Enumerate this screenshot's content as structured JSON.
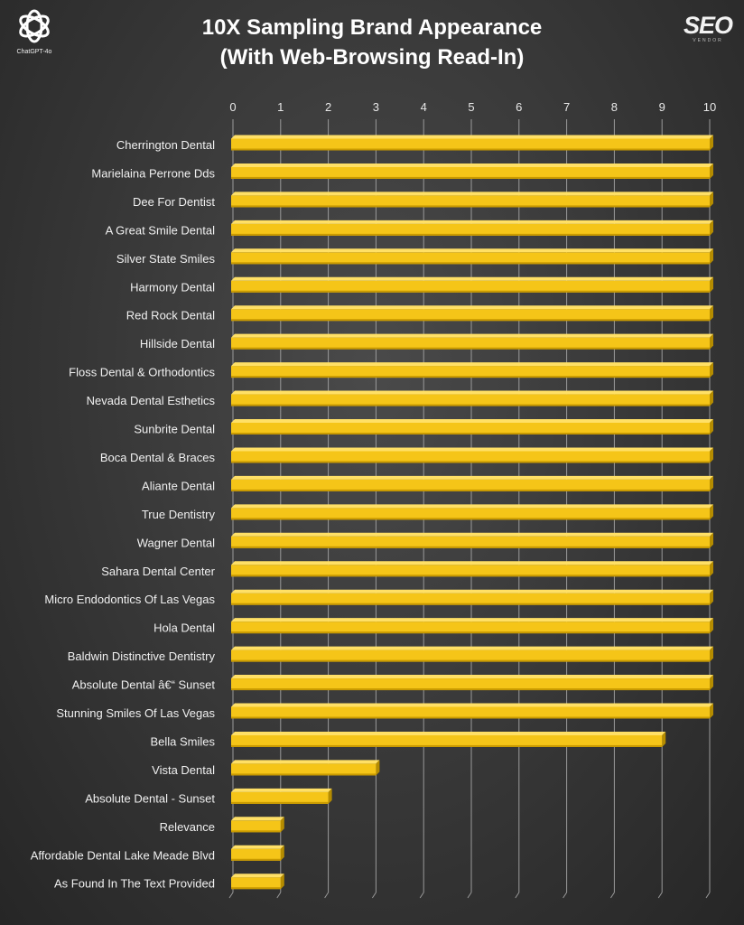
{
  "logos": {
    "left": {
      "icon": "chatgpt-icon",
      "caption": "ChatGPT-4o"
    },
    "right": {
      "text": "SEO",
      "subtext": "VENDOR"
    }
  },
  "chart_data": {
    "type": "bar",
    "orientation": "horizontal",
    "title_lines": [
      "10X Sampling Brand Appearance",
      "(With Web-Browsing Read-In)"
    ],
    "xlabel": "",
    "ylabel": "",
    "xlim": [
      0,
      10
    ],
    "x_ticks": [
      0,
      1,
      2,
      3,
      4,
      5,
      6,
      7,
      8,
      9,
      10
    ],
    "x_axis_position": "top",
    "grid": "vertical",
    "bar_color": "#f5c518",
    "categories": [
      "Cherrington Dental",
      "Marielaina Perrone Dds",
      "Dee For Dentist",
      "A Great Smile Dental",
      "Silver State Smiles",
      "Harmony Dental",
      "Red Rock Dental",
      "Hillside Dental",
      "Floss Dental & Orthodontics",
      "Nevada Dental Esthetics",
      "Sunbrite Dental",
      "Boca Dental & Braces",
      "Aliante Dental",
      "True Dentistry",
      "Wagner Dental",
      "Sahara Dental Center",
      "Micro Endodontics Of Las Vegas",
      "Hola Dental",
      "Baldwin Distinctive Dentistry",
      "Absolute Dental â€“ Sunset",
      "Stunning Smiles Of Las Vegas",
      "Bella Smiles",
      "Vista Dental",
      "Absolute Dental - Sunset",
      "Relevance",
      "Affordable Dental Lake Meade Blvd",
      "As Found In The Text Provided"
    ],
    "values": [
      10,
      10,
      10,
      10,
      10,
      10,
      10,
      10,
      10,
      10,
      10,
      10,
      10,
      10,
      10,
      10,
      10,
      10,
      10,
      10,
      10,
      9,
      3,
      2,
      1,
      1,
      1
    ]
  }
}
